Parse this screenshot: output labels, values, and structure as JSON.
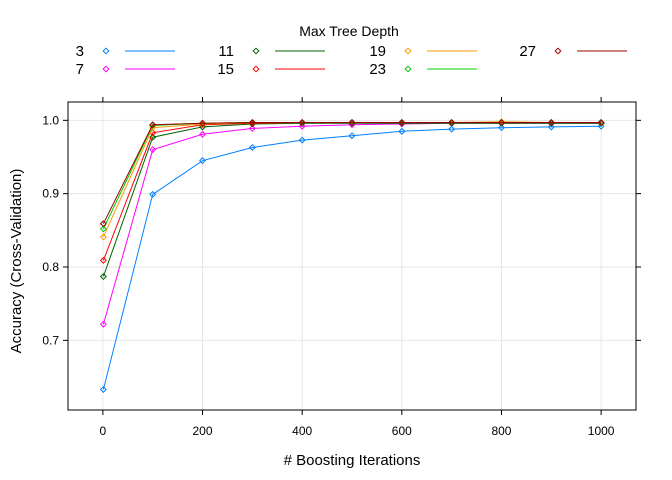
{
  "chart_data": {
    "type": "line",
    "legend_title": "Max Tree Depth",
    "legend_position": "top",
    "xlabel": "# Boosting Iterations",
    "ylabel": "Accuracy (Cross-Validation)",
    "xlim": [
      -70,
      1070
    ],
    "ylim": [
      0.605,
      1.025
    ],
    "xticks": [
      0,
      200,
      400,
      600,
      800,
      1000
    ],
    "yticks": [
      0.7,
      0.8,
      0.9,
      1.0
    ],
    "xtick_labels": [
      "0",
      "200",
      "400",
      "600",
      "800",
      "1000"
    ],
    "ytick_labels": [
      "0.7",
      "0.8",
      "0.9",
      "1.0"
    ],
    "grid": true,
    "x": [
      1,
      100,
      200,
      300,
      400,
      500,
      600,
      700,
      800,
      900,
      1000
    ],
    "series": [
      {
        "name": "3",
        "color": "#0080ff",
        "values": [
          0.633,
          0.899,
          0.945,
          0.963,
          0.973,
          0.979,
          0.985,
          0.988,
          0.99,
          0.991,
          0.992
        ]
      },
      {
        "name": "7",
        "color": "#ff00ff",
        "values": [
          0.722,
          0.96,
          0.981,
          0.989,
          0.992,
          0.994,
          0.995,
          0.996,
          0.996,
          0.996,
          0.996
        ]
      },
      {
        "name": "11",
        "color": "#006400",
        "values": [
          0.787,
          0.977,
          0.991,
          0.995,
          0.996,
          0.996,
          0.996,
          0.996,
          0.996,
          0.996,
          0.996
        ]
      },
      {
        "name": "15",
        "color": "#ff0000",
        "values": [
          0.809,
          0.983,
          0.994,
          0.996,
          0.997,
          0.997,
          0.997,
          0.997,
          0.997,
          0.997,
          0.997
        ]
      },
      {
        "name": "19",
        "color": "#ff9900",
        "values": [
          0.841,
          0.99,
          0.995,
          0.997,
          0.997,
          0.997,
          0.997,
          0.997,
          0.998,
          0.997,
          0.997
        ]
      },
      {
        "name": "23",
        "color": "#00cc00",
        "values": [
          0.852,
          0.993,
          0.996,
          0.997,
          0.997,
          0.997,
          0.997,
          0.997,
          0.997,
          0.997,
          0.997
        ]
      },
      {
        "name": "27",
        "color": "#990000",
        "values": [
          0.859,
          0.994,
          0.996,
          0.997,
          0.997,
          0.997,
          0.997,
          0.997,
          0.997,
          0.997,
          0.997
        ]
      }
    ]
  }
}
